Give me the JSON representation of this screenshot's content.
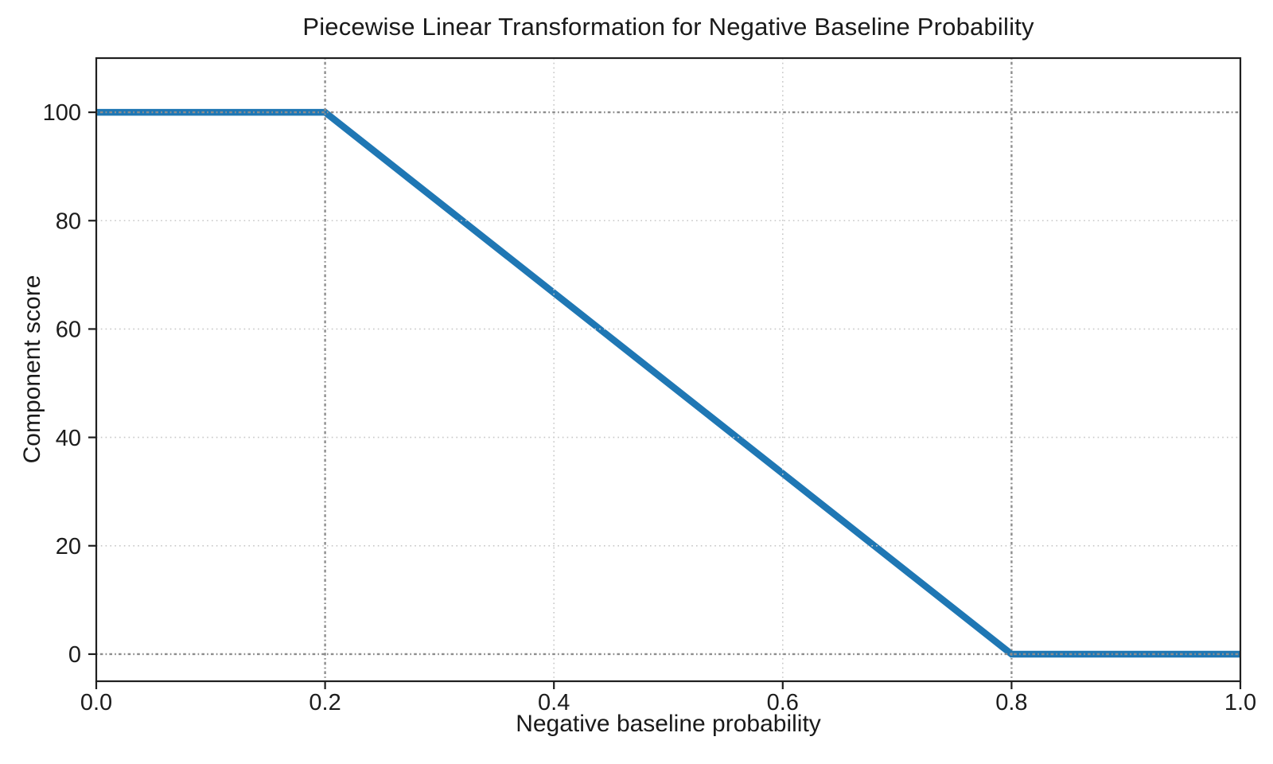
{
  "chart_data": {
    "type": "line",
    "title": "Piecewise Linear Transformation for Negative Baseline Probability",
    "xlabel": "Negative baseline probability",
    "ylabel": "Component score",
    "xlim": [
      0.0,
      1.0
    ],
    "ylim": [
      -5,
      110
    ],
    "x_ticks": {
      "values": [
        0.0,
        0.2,
        0.4,
        0.6,
        0.8,
        1.0
      ],
      "labels": [
        "0.0",
        "0.2",
        "0.4",
        "0.6",
        "0.8",
        "1.0"
      ]
    },
    "y_ticks": {
      "values": [
        0,
        20,
        40,
        60,
        80,
        100
      ],
      "labels": [
        "0",
        "20",
        "40",
        "60",
        "80",
        "100"
      ]
    },
    "series": [
      {
        "name": "component-score",
        "color": "#1f77b4",
        "x": [
          0.0,
          0.2,
          0.8,
          1.0
        ],
        "y": [
          100,
          100,
          0,
          0
        ]
      }
    ],
    "breakpoints": {
      "x": [
        0.2,
        0.8
      ],
      "y": [
        0,
        100
      ]
    },
    "grid": {
      "show": true,
      "style": "dotted",
      "color": "#c7c7c7",
      "position": "above-data"
    },
    "reference_lines": {
      "style": "dotted",
      "color": "#8d8d8d",
      "vertical_x": [
        0.2,
        0.8
      ],
      "horizontal_y": [
        0,
        100
      ]
    },
    "legend": "none",
    "axes": {
      "spine_color": "#1f1f1f",
      "tick_color": "#1f1f1f",
      "text_color": "#1c1c1c",
      "background": "#ffffff"
    }
  }
}
